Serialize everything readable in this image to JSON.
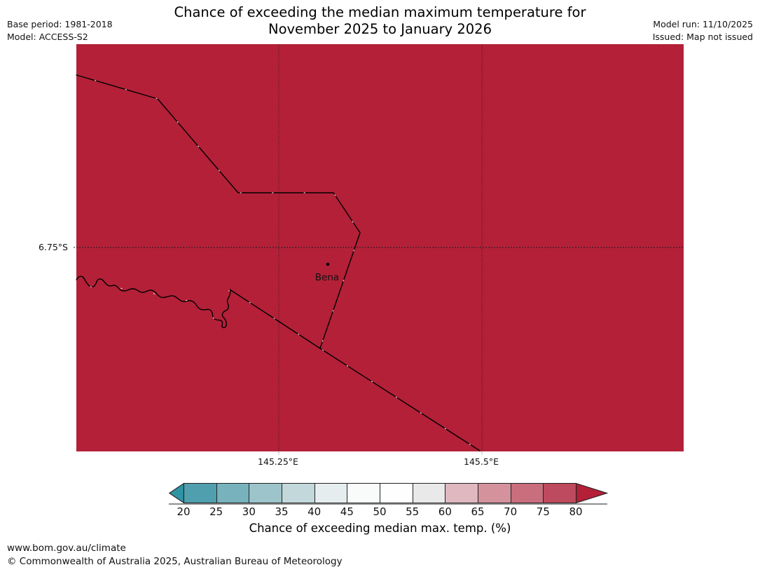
{
  "header": {
    "title_line1": "Chance of exceeding the median maximum temperature for",
    "title_line2": "November 2025 to January 2026",
    "base_period": "Base period: 1981-2018",
    "model": "Model: ACCESS-S2",
    "model_run": "Model run: 11/10/2025",
    "issued": "Issued: Map not issued"
  },
  "map": {
    "fill_color": "#b32038",
    "boundary_color": "#000000",
    "place_label": "Bena",
    "lat_label": "6.75°S",
    "lon_labels": [
      "145.25°E",
      "145.5°E"
    ]
  },
  "colorbar": {
    "ticks": [
      "20",
      "25",
      "30",
      "35",
      "40",
      "45",
      "50",
      "55",
      "60",
      "65",
      "70",
      "75",
      "80"
    ],
    "cell_colors": [
      "#4f9fae",
      "#77b2bd",
      "#9dc4ca",
      "#c3d8db",
      "#e6edee",
      "#f9fbfb",
      "#fefefe",
      "#e9e9e9",
      "#dfb8c0",
      "#d4929d",
      "#c86e7d",
      "#bd4a5e"
    ],
    "left_arrow_color": "#2e93a2",
    "right_arrow_color": "#b32038",
    "caption": "Chance of exceeding median max. temp. (%)"
  },
  "footer": {
    "url": "www.bom.gov.au/climate",
    "copyright": "© Commonwealth of Australia 2025, Australian Bureau of Meteorology"
  }
}
